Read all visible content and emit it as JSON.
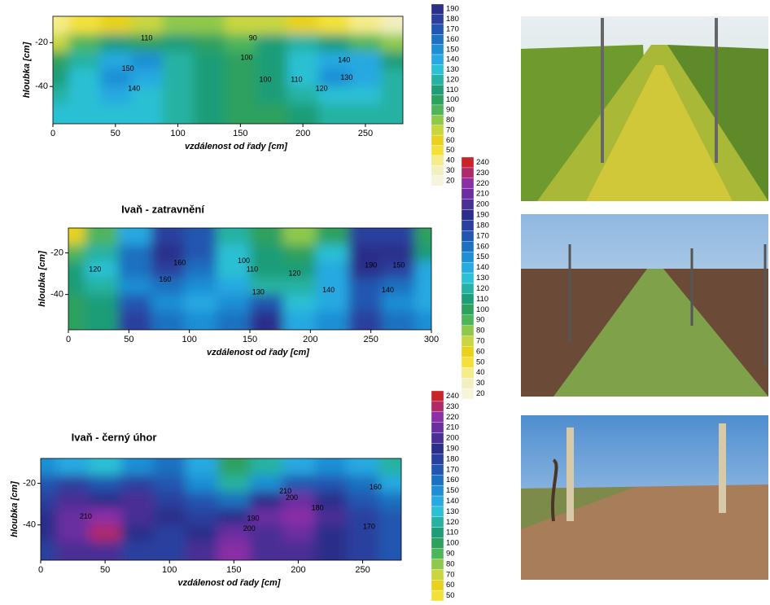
{
  "chart_data": [
    {
      "type": "contour",
      "xlabel": "vzdálenost od řady [cm]",
      "ylabel": "hloubka [cm]",
      "xlim": [
        0,
        280
      ],
      "ylim": [
        -57,
        -8
      ],
      "xticks": [
        0,
        50,
        100,
        150,
        200,
        250
      ],
      "yticks": [
        -20,
        -40
      ],
      "x": [
        0,
        25,
        50,
        75,
        100,
        125,
        150,
        175,
        200,
        225,
        250,
        275
      ],
      "y": [
        -12,
        -20,
        -28,
        -36,
        -44,
        -52
      ],
      "z": [
        [
          40,
          50,
          60,
          70,
          80,
          80,
          70,
          70,
          60,
          50,
          40,
          30
        ],
        [
          70,
          90,
          110,
          100,
          110,
          100,
          90,
          110,
          120,
          110,
          90,
          80
        ],
        [
          100,
          120,
          140,
          150,
          120,
          110,
          100,
          110,
          130,
          140,
          140,
          110
        ],
        [
          110,
          130,
          150,
          140,
          120,
          110,
          100,
          110,
          130,
          150,
          140,
          120
        ],
        [
          120,
          130,
          140,
          130,
          120,
          110,
          100,
          110,
          120,
          130,
          130,
          120
        ],
        [
          130,
          130,
          130,
          130,
          120,
          110,
          100,
          100,
          110,
          120,
          120,
          120
        ]
      ],
      "levels": [
        20,
        30,
        40,
        50,
        60,
        70,
        80,
        90,
        100,
        110,
        120,
        130,
        140,
        150,
        160,
        170,
        180,
        190
      ],
      "colors": [
        "#f7f4dc",
        "#f2efc0",
        "#f5ec8a",
        "#f3e13a",
        "#e8d21e",
        "#c9d640",
        "#8fc94b",
        "#4fb55b",
        "#2ea15e",
        "#1f9d78",
        "#25b2a2",
        "#2cc0d4",
        "#27a9e1",
        "#1e8fd5",
        "#1c71c0",
        "#2356b0",
        "#2b3f9e",
        "#2a2f8a"
      ],
      "contour_labels": [
        {
          "x": 75,
          "y": -18,
          "value": 110
        },
        {
          "x": 160,
          "y": -18,
          "value": 90
        },
        {
          "x": 60,
          "y": -32,
          "value": 150
        },
        {
          "x": 65,
          "y": -41,
          "value": 140
        },
        {
          "x": 155,
          "y": -27,
          "value": 100
        },
        {
          "x": 170,
          "y": -37,
          "value": 100
        },
        {
          "x": 195,
          "y": -37,
          "value": 110
        },
        {
          "x": 215,
          "y": -41,
          "value": 120
        },
        {
          "x": 233,
          "y": -28,
          "value": 140
        },
        {
          "x": 235,
          "y": -36,
          "value": 130
        }
      ]
    },
    {
      "type": "contour",
      "title": "Ivaň - zatravnění",
      "xlabel": "vzdálenost od řady [cm]",
      "ylabel": "hloubka [cm]",
      "xlim": [
        0,
        300
      ],
      "ylim": [
        -57,
        -8
      ],
      "xticks": [
        0,
        50,
        100,
        150,
        200,
        250,
        300
      ],
      "yticks": [
        -20,
        -40
      ],
      "x": [
        0,
        27,
        55,
        82,
        109,
        136,
        164,
        191,
        218,
        245,
        273,
        300
      ],
      "y": [
        -12,
        -20,
        -28,
        -36,
        -44,
        -52
      ],
      "z": [
        [
          60,
          90,
          140,
          180,
          170,
          120,
          100,
          80,
          100,
          180,
          180,
          100
        ],
        [
          90,
          120,
          160,
          190,
          170,
          130,
          110,
          100,
          130,
          190,
          190,
          110
        ],
        [
          110,
          130,
          160,
          180,
          160,
          130,
          110,
          110,
          140,
          190,
          180,
          140
        ],
        [
          110,
          120,
          150,
          160,
          150,
          140,
          120,
          120,
          140,
          170,
          160,
          140
        ],
        [
          100,
          110,
          170,
          150,
          140,
          150,
          170,
          130,
          140,
          170,
          150,
          140
        ],
        [
          100,
          110,
          180,
          160,
          150,
          160,
          190,
          140,
          150,
          180,
          160,
          150
        ]
      ],
      "levels": [
        20,
        30,
        40,
        50,
        60,
        70,
        80,
        90,
        100,
        110,
        120,
        130,
        140,
        150,
        160,
        170,
        180,
        190,
        200,
        210,
        220,
        230,
        240
      ],
      "colors": [
        "#f7f4dc",
        "#f2efc0",
        "#f5ec8a",
        "#f3e13a",
        "#e8d21e",
        "#c9d640",
        "#8fc94b",
        "#4fb55b",
        "#2ea15e",
        "#1f9d78",
        "#25b2a2",
        "#2cc0d4",
        "#27a9e1",
        "#1e8fd5",
        "#1c71c0",
        "#2356b0",
        "#2b3f9e",
        "#2a2f8a",
        "#4a2f95",
        "#6a2fa0",
        "#8a2fa6",
        "#b02a6a",
        "#c8242a"
      ],
      "contour_labels": [
        {
          "x": 22,
          "y": -28,
          "value": 120
        },
        {
          "x": 80,
          "y": -33,
          "value": 160
        },
        {
          "x": 92,
          "y": -25,
          "value": 160
        },
        {
          "x": 145,
          "y": -24,
          "value": 100
        },
        {
          "x": 152,
          "y": -28,
          "value": 110
        },
        {
          "x": 157,
          "y": -39,
          "value": 130
        },
        {
          "x": 187,
          "y": -30,
          "value": 120
        },
        {
          "x": 215,
          "y": -38,
          "value": 140
        },
        {
          "x": 273,
          "y": -26,
          "value": 150
        },
        {
          "x": 264,
          "y": -38,
          "value": 140
        },
        {
          "x": 250,
          "y": -26,
          "value": 190
        }
      ]
    },
    {
      "type": "contour",
      "title": "Ivaň - černý úhor",
      "xlabel": "vzdálenost od řady [cm]",
      "ylabel": "hloubka [cm]",
      "xlim": [
        0,
        280
      ],
      "ylim": [
        -57,
        -8
      ],
      "xticks": [
        0,
        50,
        100,
        150,
        200,
        250
      ],
      "yticks": [
        -20,
        -40
      ],
      "x": [
        0,
        25,
        50,
        75,
        100,
        125,
        150,
        175,
        200,
        225,
        250,
        275
      ],
      "y": [
        -12,
        -20,
        -28,
        -36,
        -44,
        -52
      ],
      "z": [
        [
          150,
          140,
          130,
          150,
          160,
          140,
          100,
          120,
          140,
          150,
          140,
          120
        ],
        [
          170,
          180,
          170,
          180,
          170,
          150,
          120,
          150,
          170,
          170,
          160,
          140
        ],
        [
          180,
          200,
          190,
          200,
          180,
          170,
          160,
          190,
          210,
          190,
          170,
          160
        ],
        [
          190,
          210,
          220,
          200,
          190,
          180,
          190,
          210,
          220,
          200,
          180,
          170
        ],
        [
          190,
          210,
          230,
          190,
          180,
          190,
          210,
          200,
          210,
          190,
          180,
          170
        ],
        [
          180,
          200,
          200,
          180,
          180,
          200,
          220,
          200,
          200,
          190,
          180,
          170
        ]
      ],
      "levels": [
        50,
        60,
        70,
        80,
        90,
        100,
        110,
        120,
        130,
        140,
        150,
        160,
        170,
        180,
        190,
        200,
        210,
        220,
        230,
        240
      ],
      "colors": [
        "#f3e13a",
        "#e8d21e",
        "#c9d640",
        "#8fc94b",
        "#4fb55b",
        "#2ea15e",
        "#1f9d78",
        "#25b2a2",
        "#2cc0d4",
        "#27a9e1",
        "#1e8fd5",
        "#1c71c0",
        "#2356b0",
        "#2b3f9e",
        "#2a2f8a",
        "#4a2f95",
        "#6a2fa0",
        "#8a2fa6",
        "#b02a6a",
        "#c8242a"
      ],
      "contour_labels": [
        {
          "x": 35,
          "y": -36,
          "value": 210
        },
        {
          "x": 165,
          "y": -37,
          "value": 190
        },
        {
          "x": 162,
          "y": -42,
          "value": 200
        },
        {
          "x": 195,
          "y": -27,
          "value": 200
        },
        {
          "x": 190,
          "y": -24,
          "value": 210
        },
        {
          "x": 260,
          "y": -22,
          "value": 160
        },
        {
          "x": 255,
          "y": -41,
          "value": 170
        },
        {
          "x": 215,
          "y": -32,
          "value": 180
        }
      ]
    }
  ]
}
